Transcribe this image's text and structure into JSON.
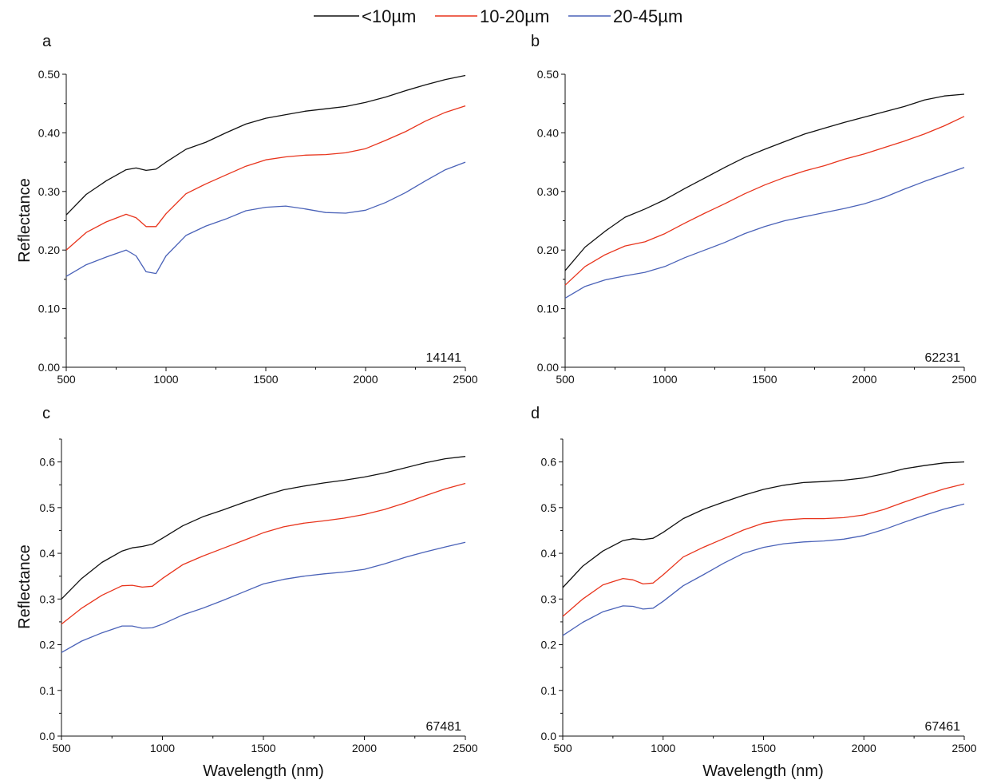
{
  "legend": [
    {
      "label": "<10µm",
      "color": "#111111"
    },
    {
      "label": "10-20µm",
      "color": "#e8341c"
    },
    {
      "label": "20-45µm",
      "color": "#4a62b8"
    }
  ],
  "chart_data": [
    {
      "type": "line",
      "panel": "a",
      "sample_label": "14141",
      "xlabel": "",
      "ylabel": "Reflectance",
      "xlim": [
        500,
        2500
      ],
      "ylim": [
        0,
        0.5
      ],
      "xticks": [
        500,
        1000,
        1500,
        2000,
        2500
      ],
      "yticks": [
        0.0,
        0.1,
        0.2,
        0.3,
        0.4,
        0.5
      ],
      "ytick_labels": [
        "0.00",
        "0.10",
        "0.20",
        "0.30",
        "0.40",
        "0.50"
      ],
      "x": [
        500,
        600,
        700,
        800,
        850,
        900,
        950,
        1000,
        1100,
        1200,
        1300,
        1400,
        1500,
        1600,
        1700,
        1800,
        1900,
        2000,
        2100,
        2200,
        2300,
        2400,
        2500
      ],
      "series": [
        {
          "name": "<10µm",
          "color": "#111111",
          "values": [
            0.26,
            0.295,
            0.318,
            0.337,
            0.34,
            0.336,
            0.338,
            0.35,
            0.372,
            0.384,
            0.4,
            0.415,
            0.425,
            0.431,
            0.437,
            0.441,
            0.445,
            0.452,
            0.461,
            0.472,
            0.482,
            0.491,
            0.498
          ]
        },
        {
          "name": "10-20µm",
          "color": "#e8341c",
          "values": [
            0.2,
            0.23,
            0.248,
            0.261,
            0.255,
            0.24,
            0.24,
            0.262,
            0.296,
            0.313,
            0.328,
            0.343,
            0.354,
            0.359,
            0.362,
            0.363,
            0.366,
            0.373,
            0.387,
            0.402,
            0.42,
            0.435,
            0.446
          ]
        },
        {
          "name": "20-45µm",
          "color": "#4a62b8",
          "values": [
            0.155,
            0.175,
            0.188,
            0.2,
            0.19,
            0.163,
            0.16,
            0.19,
            0.225,
            0.241,
            0.253,
            0.267,
            0.273,
            0.275,
            0.27,
            0.264,
            0.263,
            0.268,
            0.281,
            0.298,
            0.318,
            0.337,
            0.35
          ]
        }
      ]
    },
    {
      "type": "line",
      "panel": "b",
      "sample_label": "62231",
      "xlabel": "",
      "ylabel": "",
      "xlim": [
        500,
        2500
      ],
      "ylim": [
        0,
        0.5
      ],
      "xticks": [
        500,
        1000,
        1500,
        2000,
        2500
      ],
      "yticks": [
        0.0,
        0.1,
        0.2,
        0.3,
        0.4,
        0.5
      ],
      "ytick_labels": [
        "0.00",
        "0.10",
        "0.20",
        "0.30",
        "0.40",
        "0.50"
      ],
      "x": [
        500,
        600,
        700,
        800,
        900,
        1000,
        1100,
        1200,
        1300,
        1400,
        1500,
        1600,
        1700,
        1800,
        1900,
        2000,
        2100,
        2200,
        2300,
        2400,
        2500
      ],
      "series": [
        {
          "name": "<10µm",
          "color": "#111111",
          "values": [
            0.165,
            0.205,
            0.232,
            0.256,
            0.27,
            0.286,
            0.305,
            0.323,
            0.341,
            0.358,
            0.372,
            0.385,
            0.398,
            0.408,
            0.418,
            0.427,
            0.436,
            0.445,
            0.456,
            0.463,
            0.466
          ]
        },
        {
          "name": "10-20µm",
          "color": "#e8341c",
          "values": [
            0.14,
            0.172,
            0.192,
            0.207,
            0.214,
            0.228,
            0.246,
            0.263,
            0.279,
            0.296,
            0.311,
            0.324,
            0.335,
            0.344,
            0.355,
            0.364,
            0.375,
            0.386,
            0.398,
            0.412,
            0.428
          ]
        },
        {
          "name": "20-45µm",
          "color": "#4a62b8",
          "values": [
            0.118,
            0.138,
            0.149,
            0.156,
            0.162,
            0.172,
            0.187,
            0.2,
            0.213,
            0.228,
            0.24,
            0.25,
            0.257,
            0.264,
            0.271,
            0.279,
            0.29,
            0.304,
            0.317,
            0.329,
            0.341
          ]
        }
      ]
    },
    {
      "type": "line",
      "panel": "c",
      "sample_label": "67481",
      "xlabel": "Wavelength (nm)",
      "ylabel": "Reflectance",
      "xlim": [
        500,
        2500
      ],
      "ylim": [
        0,
        0.65
      ],
      "xticks": [
        500,
        1000,
        1500,
        2000,
        2500
      ],
      "yticks": [
        0.0,
        0.1,
        0.2,
        0.3,
        0.4,
        0.5,
        0.6
      ],
      "ytick_labels": [
        "0.0",
        "0.1",
        "0.2",
        "0.3",
        "0.4",
        "0.5",
        "0.6"
      ],
      "x": [
        500,
        600,
        700,
        800,
        850,
        900,
        950,
        1000,
        1100,
        1200,
        1300,
        1400,
        1500,
        1600,
        1700,
        1800,
        1900,
        2000,
        2100,
        2200,
        2300,
        2400,
        2500
      ],
      "series": [
        {
          "name": "<10µm",
          "color": "#111111",
          "values": [
            0.3,
            0.345,
            0.38,
            0.405,
            0.412,
            0.415,
            0.42,
            0.433,
            0.46,
            0.48,
            0.495,
            0.511,
            0.526,
            0.539,
            0.547,
            0.554,
            0.56,
            0.567,
            0.576,
            0.587,
            0.598,
            0.607,
            0.612
          ]
        },
        {
          "name": "10-20µm",
          "color": "#e8341c",
          "values": [
            0.245,
            0.28,
            0.308,
            0.329,
            0.33,
            0.326,
            0.328,
            0.345,
            0.375,
            0.394,
            0.411,
            0.428,
            0.445,
            0.458,
            0.466,
            0.471,
            0.477,
            0.485,
            0.496,
            0.51,
            0.526,
            0.541,
            0.553
          ]
        },
        {
          "name": "20-45µm",
          "color": "#4a62b8",
          "values": [
            0.183,
            0.208,
            0.226,
            0.241,
            0.241,
            0.236,
            0.237,
            0.245,
            0.265,
            0.28,
            0.297,
            0.315,
            0.333,
            0.343,
            0.35,
            0.355,
            0.359,
            0.365,
            0.377,
            0.391,
            0.403,
            0.414,
            0.424
          ]
        }
      ]
    },
    {
      "type": "line",
      "panel": "d",
      "sample_label": "67461",
      "xlabel": "Wavelength (nm)",
      "ylabel": "",
      "xlim": [
        500,
        2500
      ],
      "ylim": [
        0,
        0.65
      ],
      "xticks": [
        500,
        1000,
        1500,
        2000,
        2500
      ],
      "yticks": [
        0.0,
        0.1,
        0.2,
        0.3,
        0.4,
        0.5,
        0.6
      ],
      "ytick_labels": [
        "0.0",
        "0.1",
        "0.2",
        "0.3",
        "0.4",
        "0.5",
        "0.6"
      ],
      "x": [
        500,
        600,
        700,
        800,
        850,
        900,
        950,
        1000,
        1100,
        1200,
        1300,
        1400,
        1500,
        1600,
        1700,
        1800,
        1900,
        2000,
        2100,
        2200,
        2300,
        2400,
        2500
      ],
      "series": [
        {
          "name": "<10µm",
          "color": "#111111",
          "values": [
            0.325,
            0.372,
            0.405,
            0.428,
            0.432,
            0.43,
            0.433,
            0.446,
            0.476,
            0.496,
            0.512,
            0.527,
            0.54,
            0.549,
            0.555,
            0.557,
            0.56,
            0.565,
            0.574,
            0.585,
            0.592,
            0.598,
            0.6
          ]
        },
        {
          "name": "10-20µm",
          "color": "#e8341c",
          "values": [
            0.262,
            0.3,
            0.331,
            0.345,
            0.342,
            0.333,
            0.335,
            0.353,
            0.392,
            0.413,
            0.432,
            0.451,
            0.466,
            0.473,
            0.476,
            0.476,
            0.478,
            0.484,
            0.496,
            0.512,
            0.527,
            0.541,
            0.552
          ]
        },
        {
          "name": "20-45µm",
          "color": "#4a62b8",
          "values": [
            0.22,
            0.249,
            0.272,
            0.285,
            0.284,
            0.278,
            0.28,
            0.295,
            0.329,
            0.353,
            0.378,
            0.4,
            0.413,
            0.421,
            0.425,
            0.427,
            0.431,
            0.439,
            0.452,
            0.468,
            0.483,
            0.497,
            0.508
          ]
        }
      ]
    }
  ]
}
